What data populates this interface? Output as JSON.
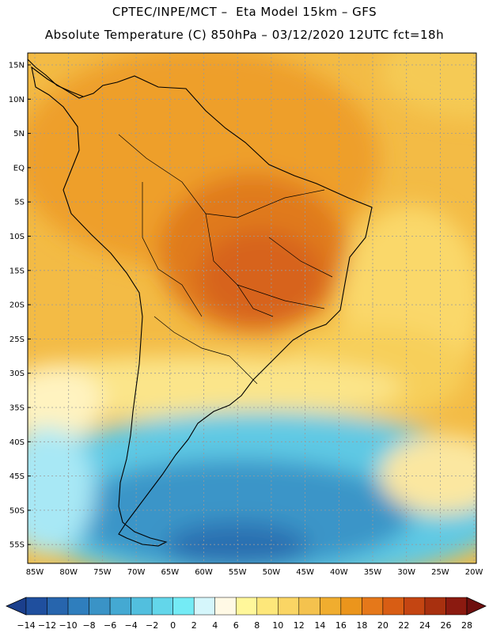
{
  "title_line1": "CPTEC/INPE/MCT –  Eta Model 15km – GFS",
  "title_line2": "Absolute Temperature (C) 850hPa – 03/12/2020 12UTC fct=18h",
  "lat_labels": [
    "15N",
    "10N",
    "5N",
    "EQ",
    "5S",
    "10S",
    "15S",
    "20S",
    "25S",
    "30S",
    "35S",
    "40S",
    "45S",
    "50S",
    "55S"
  ],
  "lon_labels": [
    "85W",
    "80W",
    "75W",
    "70W",
    "65W",
    "60W",
    "55W",
    "50W",
    "45W",
    "40W",
    "35W",
    "30W",
    "25W",
    "20W"
  ],
  "colorbar": {
    "labels": [
      "-14",
      "-12",
      "-10",
      "-8",
      "-6",
      "-4",
      "-2",
      "0",
      "2",
      "4",
      "6",
      "8",
      "10",
      "12",
      "14",
      "16",
      "18",
      "20",
      "22",
      "24",
      "26",
      "28"
    ],
    "colors": [
      "#1b3f8c",
      "#1f4f9e",
      "#2765ad",
      "#2f7ebd",
      "#3a93c6",
      "#44a9d2",
      "#52bfde",
      "#63d6ea",
      "#74ebf5",
      "#d5f6fb",
      "#fff9e5",
      "#fff79a",
      "#fde77a",
      "#fad564",
      "#f4c24e",
      "#f0ad2f",
      "#eb951c",
      "#e5781a",
      "#d85d14",
      "#c44512",
      "#a8300f",
      "#8b1a10",
      "#6e0f0e"
    ]
  }
}
